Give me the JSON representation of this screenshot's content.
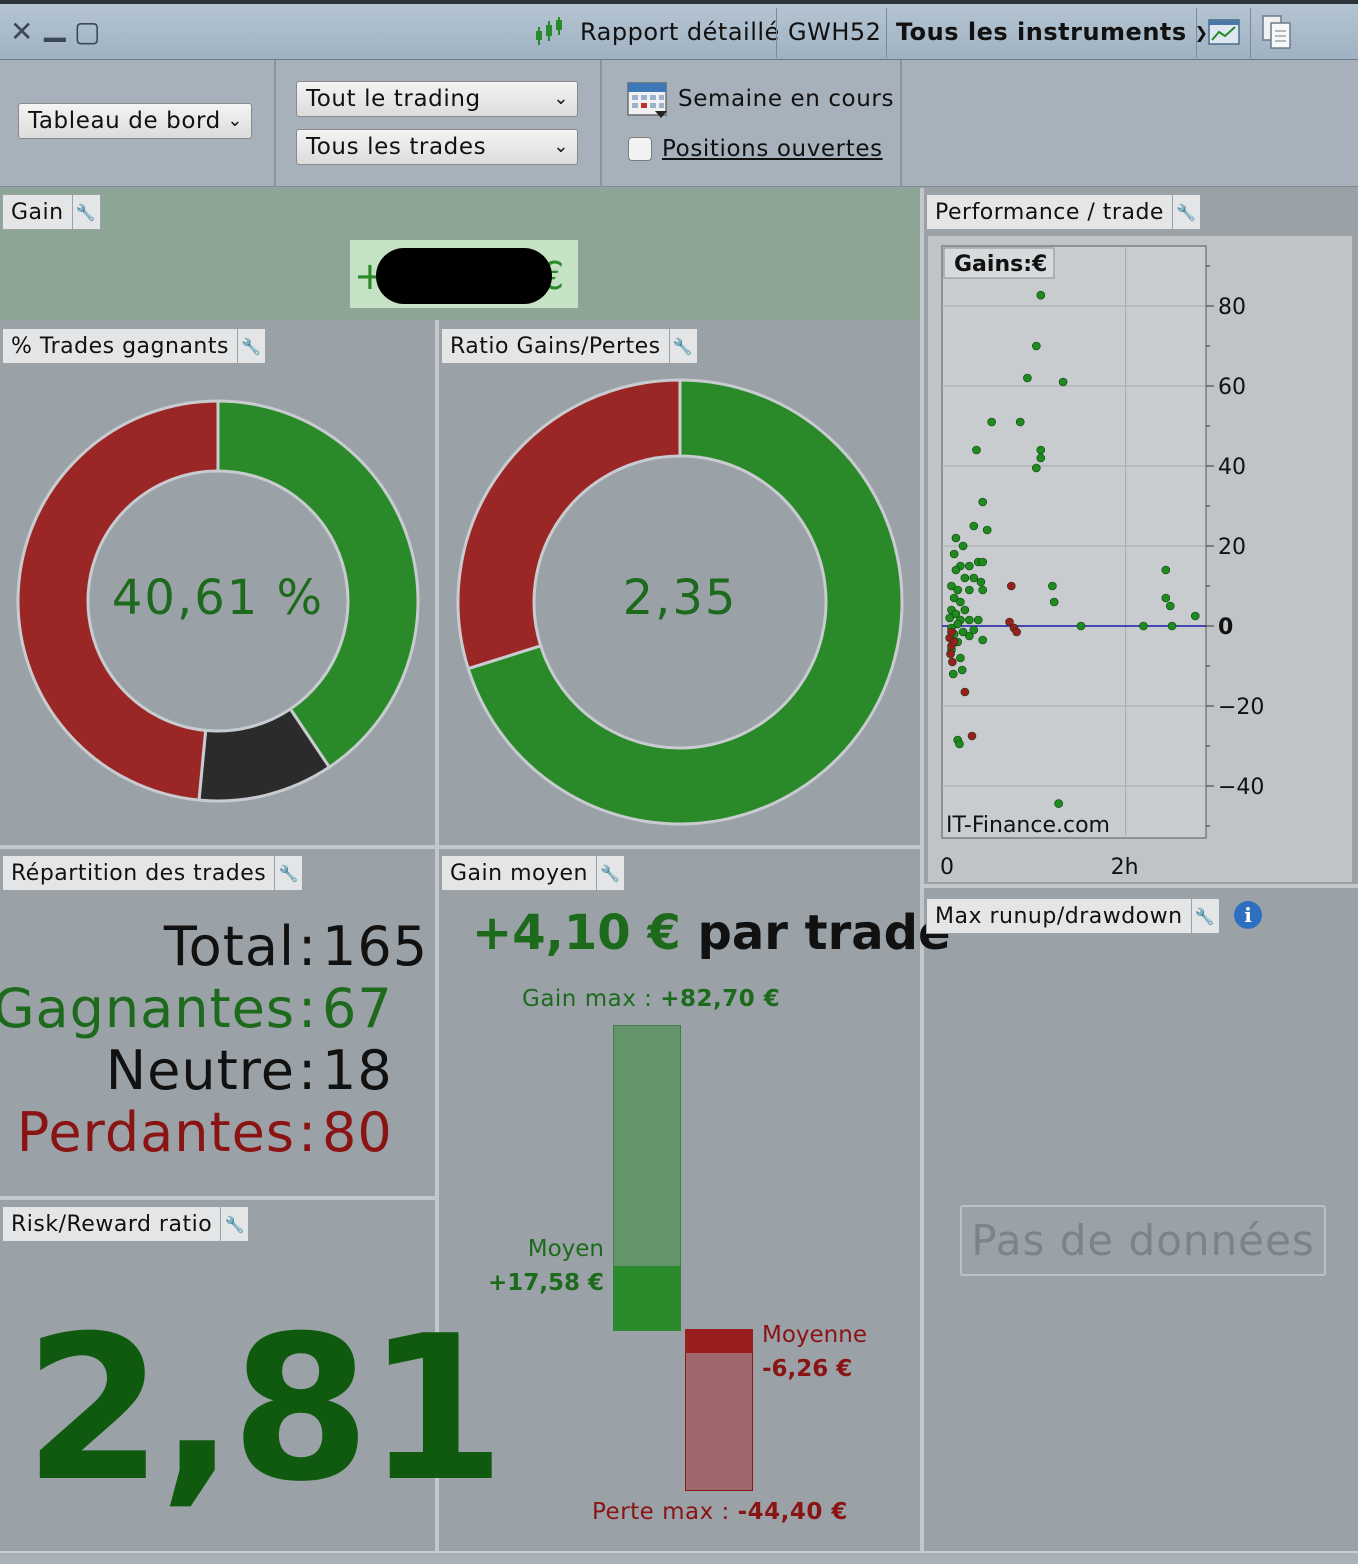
{
  "window": {
    "close_glyph": "✕",
    "minimize_glyph": "▁",
    "maximize_glyph": "▢",
    "report_label": "Rapport détaillé",
    "account": "GWH52",
    "instruments_label": "Tous les instruments",
    "icons": [
      "candlestick-icon",
      "chart-window-icon",
      "document-copy-icon"
    ]
  },
  "toolbar": {
    "view_select": "Tableau de bord",
    "trading_select": "Tout le trading",
    "trades_select": "Tous les trades",
    "period_label": "Semaine en cours",
    "open_positions_label": "Positions ouvertes",
    "open_positions_checked": false
  },
  "panels": {
    "gain": {
      "title": "Gain",
      "value_prefix": "+",
      "value_suffix": "€"
    },
    "win_pct": {
      "title": "% Trades gagnants",
      "value": "40,61 %",
      "segments": [
        {
          "name": "Gagnantes",
          "count": 67,
          "color": "#2a8a2a"
        },
        {
          "name": "Neutre",
          "count": 18,
          "color": "#2b2b2b"
        },
        {
          "name": "Perdantes",
          "count": 80,
          "color": "#9b2626"
        }
      ]
    },
    "ratio": {
      "title": "Ratio Gains/Pertes",
      "value": "2,35",
      "gain_fraction": 0.7015,
      "colors": {
        "gain": "#2a8a2a",
        "loss": "#9b2626"
      }
    },
    "perf": {
      "title": "Performance / trade",
      "legend": "Gains:€",
      "watermark": "IT-Finance.com"
    },
    "repartition": {
      "title": "Répartition des trades",
      "rows": [
        {
          "label": "Total",
          "sep": ":",
          "value": "165",
          "color": "#111111"
        },
        {
          "label": "Gagnantes",
          "sep": ":",
          "value": "67",
          "color": "#1d6a1d"
        },
        {
          "label": "Neutre",
          "sep": ":",
          "value": "18",
          "color": "#111111"
        },
        {
          "label": "Perdantes",
          "sep": ":",
          "value": "80",
          "color": "#8a1414"
        }
      ]
    },
    "gain_moyen": {
      "title": "Gain moyen",
      "headline_value": "+4,10 €",
      "headline_suffix": "par trade",
      "gain_max_label": "Gain max :",
      "gain_max_value": "+82,70 €",
      "moyen_label": "Moyen",
      "moyen_value": "+17,58 €",
      "moyenne_label": "Moyenne",
      "moyenne_value": "-6,26 €",
      "perte_max_label": "Perte max :",
      "perte_max_value": "-44,40 €"
    },
    "risk_reward": {
      "title": "Risk/Reward ratio",
      "value": "2,81"
    },
    "runup": {
      "title": "Max runup/drawdown",
      "no_data": "Pas de données"
    }
  },
  "chart_data": {
    "type": "scatter",
    "title": "Performance / trade",
    "legend": "Gains:€",
    "xlabel": "",
    "ylabel": "",
    "x_ticks": [
      "0",
      "2h"
    ],
    "y_ticks": [
      80,
      60,
      40,
      20,
      0,
      -20,
      -40
    ],
    "xlim_hours": [
      0,
      2.9
    ],
    "ylim": [
      -53,
      95
    ],
    "grid": true,
    "zero_line_color": "#1b1baa",
    "series": [
      {
        "name": "",
        "color": "#1f8a1f",
        "points": [
          [
            1.05,
            82.7
          ],
          [
            1.0,
            70
          ],
          [
            0.9,
            62
          ],
          [
            1.3,
            61
          ],
          [
            0.5,
            51
          ],
          [
            0.82,
            51
          ],
          [
            0.33,
            44
          ],
          [
            1.05,
            44
          ],
          [
            1.05,
            42
          ],
          [
            1.0,
            39.5
          ],
          [
            0.4,
            31
          ],
          [
            0.3,
            25
          ],
          [
            0.45,
            24
          ],
          [
            0.1,
            22
          ],
          [
            0.18,
            20
          ],
          [
            0.08,
            18
          ],
          [
            0.35,
            16
          ],
          [
            0.4,
            16
          ],
          [
            0.15,
            15
          ],
          [
            0.25,
            15
          ],
          [
            0.1,
            14
          ],
          [
            0.2,
            12
          ],
          [
            0.3,
            12
          ],
          [
            0.38,
            11
          ],
          [
            0.05,
            10
          ],
          [
            0.12,
            9
          ],
          [
            0.25,
            9
          ],
          [
            0.4,
            9
          ],
          [
            0.08,
            7
          ],
          [
            0.15,
            6
          ],
          [
            0.05,
            4
          ],
          [
            0.2,
            4
          ],
          [
            0.1,
            3
          ],
          [
            0.03,
            2
          ],
          [
            0.15,
            1.5
          ],
          [
            0.25,
            1.5
          ],
          [
            0.35,
            1.5
          ],
          [
            0.12,
            0.5
          ],
          [
            0.05,
            -0.5
          ],
          [
            0.3,
            -1
          ],
          [
            0.18,
            -1.5
          ],
          [
            0.08,
            -2
          ],
          [
            0.25,
            -2.5
          ],
          [
            0.4,
            -3.5
          ],
          [
            0.12,
            -4
          ],
          [
            0.05,
            -6
          ],
          [
            0.15,
            -8
          ],
          [
            0.07,
            -12
          ],
          [
            0.17,
            -11
          ],
          [
            0.12,
            -28.5
          ],
          [
            0.14,
            -29.5
          ],
          [
            1.18,
            10
          ],
          [
            1.2,
            6
          ],
          [
            1.5,
            0
          ],
          [
            2.2,
            0
          ],
          [
            2.45,
            14
          ],
          [
            2.45,
            7
          ],
          [
            2.5,
            5
          ],
          [
            2.52,
            0
          ],
          [
            2.78,
            2.5
          ],
          [
            1.25,
            -44.4
          ]
        ]
      },
      {
        "name": "",
        "color": "#9b1e1e",
        "points": [
          [
            0.03,
            -3
          ],
          [
            0.05,
            -5
          ],
          [
            0.04,
            -7
          ],
          [
            0.06,
            -9
          ],
          [
            0.05,
            -1.5
          ],
          [
            0.08,
            -4
          ],
          [
            0.72,
            10
          ],
          [
            0.7,
            1
          ],
          [
            0.75,
            -0.5
          ],
          [
            0.78,
            -1.5
          ],
          [
            0.2,
            -16.5
          ],
          [
            0.28,
            -27.5
          ]
        ]
      }
    ]
  }
}
